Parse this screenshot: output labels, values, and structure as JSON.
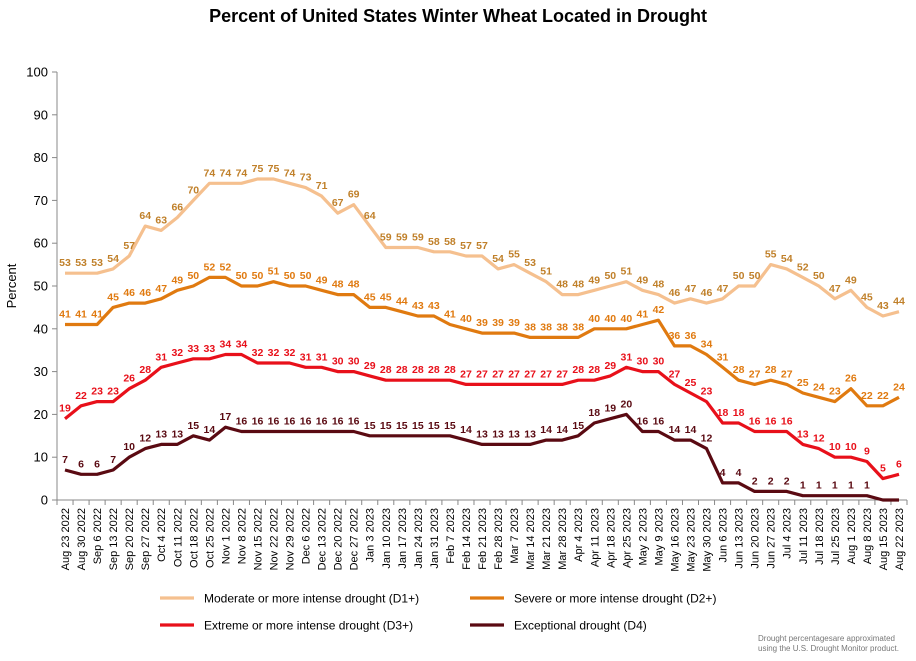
{
  "chart_data": {
    "type": "line",
    "title": "Percent of United States Winter Wheat Located in Drought",
    "ylabel": "Percent",
    "xlabel": "",
    "ylim": [
      0,
      100
    ],
    "yticks": [
      0,
      10,
      20,
      30,
      40,
      50,
      60,
      70,
      80,
      90,
      100
    ],
    "grid": false,
    "legend": "bottom",
    "x": [
      "Aug 23 2022",
      "Aug 30 2022",
      "Sep 6 2022",
      "Sep 13 2022",
      "Sep 20 2022",
      "Sep 27 2022",
      "Oct 4 2022",
      "Oct 11 2022",
      "Oct 18 2022",
      "Oct 25 2022",
      "Nov 1 2022",
      "Nov 8 2022",
      "Nov 15 2022",
      "Nov 22 2022",
      "Nov 29 2022",
      "Dec 6 2022",
      "Dec 13 2022",
      "Dec 20 2022",
      "Dec 27 2022",
      "Jan 3 2023",
      "Jan 10 2023",
      "Jan 17 2023",
      "Jan 24 2023",
      "Jan 31 2023",
      "Feb 7 2023",
      "Feb 14 2023",
      "Feb 21 2023",
      "Feb 28 2023",
      "Mar 7 2023",
      "Mar 14 2023",
      "Mar 21 2023",
      "Mar 28 2023",
      "Apr 4 2023",
      "Apr 11 2023",
      "Apr 18 2023",
      "Apr 25 2023",
      "May 2 2023",
      "May 9 2023",
      "May 16 2023",
      "May 23 2023",
      "May 30 2023",
      "Jun 6 2023",
      "Jun 13 2023",
      "Jun 20 2023",
      "Jun 27 2023",
      "Jul 4 2023",
      "Jul 11 2023",
      "Jul 18 2023",
      "Jul 25 2023",
      "Aug 1 2023",
      "Aug 8 2023",
      "Aug 15 2023",
      "Aug 22 2023"
    ],
    "x_labels_shown": [
      "Aug 23 2022",
      "Aug 30 2022",
      "Sep 6 2022",
      "Sep 13 2022",
      "Sep 20 2022",
      "Sep 27 2022",
      "Oct 4 2022",
      "Oct 11 2022",
      "Oct 18 2022",
      "Oct 25 2022",
      "Nov 1 2022",
      "Nov 8 2022",
      "Nov 15 2022",
      "Nov 22 2022",
      "Nov 29 2022",
      "Dec 6 2022",
      "Dec 13 2022",
      "Dec 20 2022",
      "Dec 27 2022",
      "Jan 3 2023",
      "Jan 10 2023",
      "Jan 17 2023",
      "Jan 24 2023",
      "Jan 31 2023",
      "Feb 7 2023",
      "Feb 14 2023",
      "Feb 21 2023",
      "Feb 28 2023",
      "Mar 7 2023",
      "Mar 14 2023",
      "Mar 21 2023",
      "Mar 28 2023",
      "Apr 4 2023",
      "Apr 11 2023",
      "Apr 18 2023",
      "Apr 25 2023",
      "May 2 2023",
      "May 9 2023",
      "May 16 2023",
      "May 23 2023",
      "May 30 2023",
      "Jun 6 2023",
      "Jun 13 2023",
      "Jun 20 2023",
      "Jun 27 2023",
      "Jul 4 2023",
      "Jul 11 2023",
      "Jul 18 2023",
      "Jul 25 2023",
      "Aug 1 2023",
      "Aug 8 2023",
      "Aug 15 2023",
      "Aug 22 2023"
    ],
    "series": [
      {
        "name": "Moderate or more intense drought (D1+)",
        "color": "#f5c08f",
        "label_color": "#c0802a",
        "values": [
          53,
          53,
          53,
          54,
          57,
          64,
          63,
          66,
          70,
          74,
          74,
          74,
          75,
          75,
          74,
          73,
          71,
          67,
          69,
          64,
          59,
          59,
          59,
          58,
          58,
          57,
          57,
          54,
          55,
          53,
          51,
          48,
          48,
          49,
          50,
          51,
          49,
          48,
          46,
          47,
          46,
          47,
          50,
          50,
          55,
          54,
          52,
          50,
          47,
          49,
          45,
          43,
          44
        ]
      },
      {
        "name": "Severe or more intense drought (D2+)",
        "color": "#e07a10",
        "label_color": "#e07a10",
        "values": [
          41,
          41,
          41,
          45,
          46,
          46,
          47,
          49,
          50,
          52,
          52,
          50,
          50,
          51,
          50,
          50,
          49,
          48,
          48,
          45,
          45,
          44,
          43,
          43,
          41,
          40,
          39,
          39,
          39,
          38,
          38,
          38,
          38,
          40,
          40,
          40,
          41,
          42,
          36,
          36,
          34,
          31,
          28,
          27,
          28,
          27,
          25,
          24,
          23,
          26,
          22,
          22,
          24
        ]
      },
      {
        "name": "Extreme or more intense drought (D3+)",
        "color": "#e8101a",
        "label_color": "#e8101a",
        "values": [
          19,
          22,
          23,
          23,
          26,
          28,
          31,
          32,
          33,
          33,
          34,
          34,
          32,
          32,
          32,
          31,
          31,
          30,
          30,
          29,
          28,
          28,
          28,
          28,
          28,
          27,
          27,
          27,
          27,
          27,
          27,
          27,
          28,
          28,
          29,
          31,
          30,
          30,
          27,
          25,
          23,
          18,
          18,
          16,
          16,
          16,
          13,
          12,
          10,
          10,
          9,
          5,
          6
        ]
      },
      {
        "name": "Exceptional drought (D4)",
        "color": "#5a0a12",
        "label_color": "#5a0a12",
        "values": [
          7,
          6,
          6,
          7,
          10,
          12,
          13,
          13,
          15,
          14,
          17,
          16,
          16,
          16,
          16,
          16,
          16,
          16,
          16,
          15,
          15,
          15,
          15,
          15,
          15,
          14,
          13,
          13,
          13,
          13,
          14,
          14,
          15,
          18,
          19,
          20,
          16,
          16,
          14,
          14,
          12,
          4,
          4,
          2,
          2,
          2,
          1,
          1,
          1,
          1,
          1,
          0,
          0
        ]
      }
    ],
    "note": [
      "Drought percentagesare approximated",
      "using the U.S. Drought Monitor product."
    ]
  }
}
